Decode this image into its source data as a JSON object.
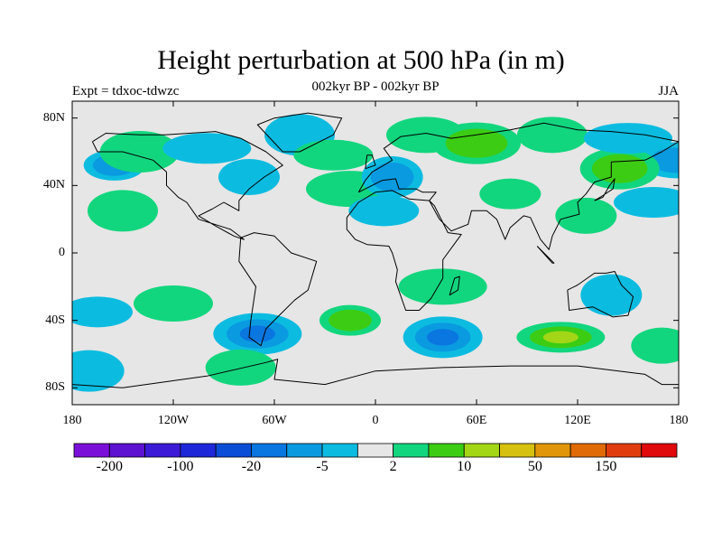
{
  "title": "Height perturbation at 500 hPa (in m)",
  "subtitle": "002kyr BP - 002kyr BP",
  "left_string": "Expt = tdxoc-tdwzc",
  "right_string": "JJA",
  "lat_axis": {
    "labels": [
      {
        "value": 80,
        "text": "80N"
      },
      {
        "value": 40,
        "text": "40N"
      },
      {
        "value": 0,
        "text": "0"
      },
      {
        "value": -40,
        "text": "40S"
      },
      {
        "value": -80,
        "text": "80S"
      }
    ]
  },
  "lon_axis": {
    "labels": [
      {
        "value": -180,
        "text": "180"
      },
      {
        "value": -120,
        "text": "120W"
      },
      {
        "value": -60,
        "text": "60W"
      },
      {
        "value": 0,
        "text": "0"
      },
      {
        "value": 60,
        "text": "60E"
      },
      {
        "value": 120,
        "text": "120E"
      },
      {
        "value": 180,
        "text": "180"
      }
    ]
  },
  "map_extent": {
    "lon": [
      -180,
      180
    ],
    "lat": [
      -90,
      90
    ]
  },
  "colorbar": {
    "colors": [
      "#7a10d8",
      "#5c12d0",
      "#3d1ad6",
      "#1e28d8",
      "#0a4ed8",
      "#0a76e0",
      "#0a9ae0",
      "#0cbce0",
      "#e6e6e6",
      "#12d67e",
      "#3ccc14",
      "#a2d616",
      "#d6c010",
      "#e09608",
      "#e06a06",
      "#e03c0e",
      "#e00a0a"
    ],
    "labels": [
      {
        "index": 1,
        "text": "-200"
      },
      {
        "index": 3,
        "text": "-100"
      },
      {
        "index": 5,
        "text": "-20"
      },
      {
        "index": 7,
        "text": "-5"
      },
      {
        "index": 9,
        "text": "2"
      },
      {
        "index": 11,
        "text": "10"
      },
      {
        "index": 13,
        "text": "50"
      },
      {
        "index": 15,
        "text": "150"
      }
    ]
  },
  "field": {
    "background_color": "#e6e6e6",
    "anomalies": [
      {
        "lon": -155,
        "lat": 52,
        "level": -2
      },
      {
        "lon": 178,
        "lat": 55,
        "level": -2
      },
      {
        "lon": -140,
        "lat": 60,
        "level": 1
      },
      {
        "lon": -100,
        "lat": 62,
        "level": -1
      },
      {
        "lon": -75,
        "lat": 45,
        "level": -1
      },
      {
        "lon": -45,
        "lat": 70,
        "level": -1
      },
      {
        "lon": -25,
        "lat": 58,
        "level": 1
      },
      {
        "lon": -15,
        "lat": 38,
        "level": 1
      },
      {
        "lon": 10,
        "lat": 45,
        "level": -2
      },
      {
        "lon": 5,
        "lat": 25,
        "level": -1
      },
      {
        "lon": 30,
        "lat": 70,
        "level": 1
      },
      {
        "lon": 60,
        "lat": 65,
        "level": 2
      },
      {
        "lon": 80,
        "lat": 35,
        "level": 1
      },
      {
        "lon": 105,
        "lat": 70,
        "level": 1
      },
      {
        "lon": 145,
        "lat": 50,
        "level": 2
      },
      {
        "lon": 150,
        "lat": 68,
        "level": -1
      },
      {
        "lon": 125,
        "lat": 22,
        "level": 1
      },
      {
        "lon": -150,
        "lat": 25,
        "level": 1
      },
      {
        "lon": 165,
        "lat": 30,
        "level": -1
      },
      {
        "lon": 40,
        "lat": -20,
        "level": 1
      },
      {
        "lon": 140,
        "lat": -25,
        "level": -1
      },
      {
        "lon": -165,
        "lat": -35,
        "level": -1
      },
      {
        "lon": -120,
        "lat": -30,
        "level": 1
      },
      {
        "lon": -70,
        "lat": -48,
        "level": -3
      },
      {
        "lon": -15,
        "lat": -40,
        "level": 2
      },
      {
        "lon": -80,
        "lat": -68,
        "level": 1
      },
      {
        "lon": 40,
        "lat": -50,
        "level": -3
      },
      {
        "lon": 110,
        "lat": -50,
        "level": 3
      },
      {
        "lon": 170,
        "lat": -55,
        "level": 1
      },
      {
        "lon": -170,
        "lat": -70,
        "level": -1
      }
    ]
  }
}
